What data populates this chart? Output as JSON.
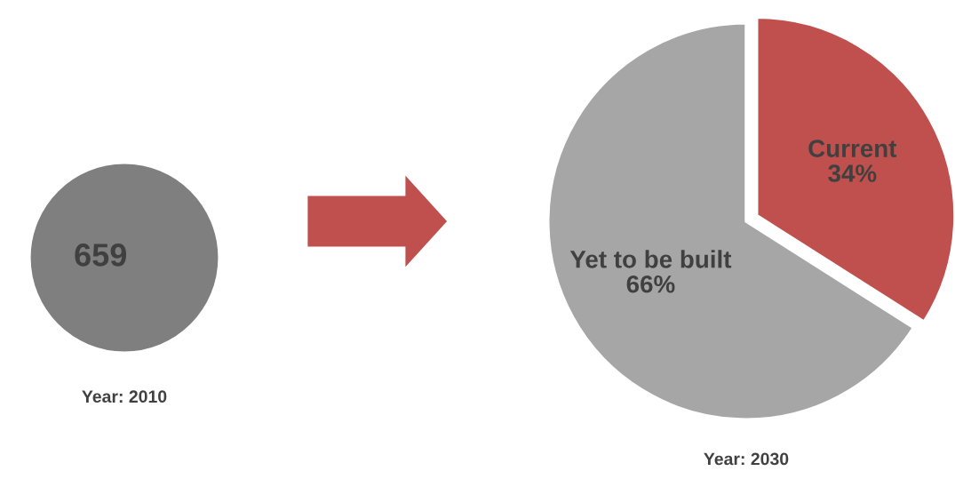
{
  "chart_data": [
    {
      "type": "pie",
      "categories": [
        null
      ],
      "values": [
        659
      ],
      "colors": [
        "#7f7f7f"
      ],
      "data_labels": true,
      "annotations": [
        "Year: 2010"
      ]
    },
    {
      "type": "pie",
      "categories": [
        "Current",
        "Yet to be built"
      ],
      "values": [
        34,
        66
      ],
      "value_labels": [
        "34%",
        "66%"
      ],
      "colors": [
        "#c0504d",
        "#a6a6a6"
      ],
      "annotations": [
        "Year: 2030"
      ]
    }
  ]
}
